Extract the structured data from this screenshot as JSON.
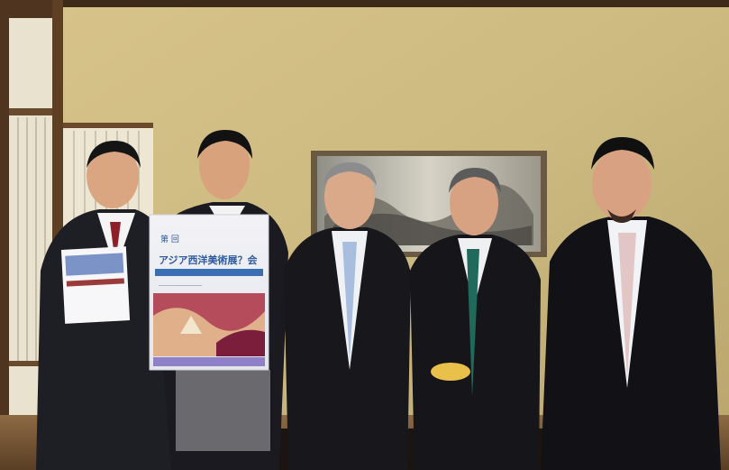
{
  "poster": {
    "line1": "第   回",
    "line2": "アジア西洋美術展？会",
    "subline": "────────────────",
    "banner": "──────────────"
  },
  "colors": {
    "wall": "#c9b981",
    "wall_light": "#dccb90",
    "wood": "#6b4a2c",
    "suit": "#1c1c22",
    "poster_blue": "#3a6fb3",
    "poster_red": "#c23a3a"
  }
}
